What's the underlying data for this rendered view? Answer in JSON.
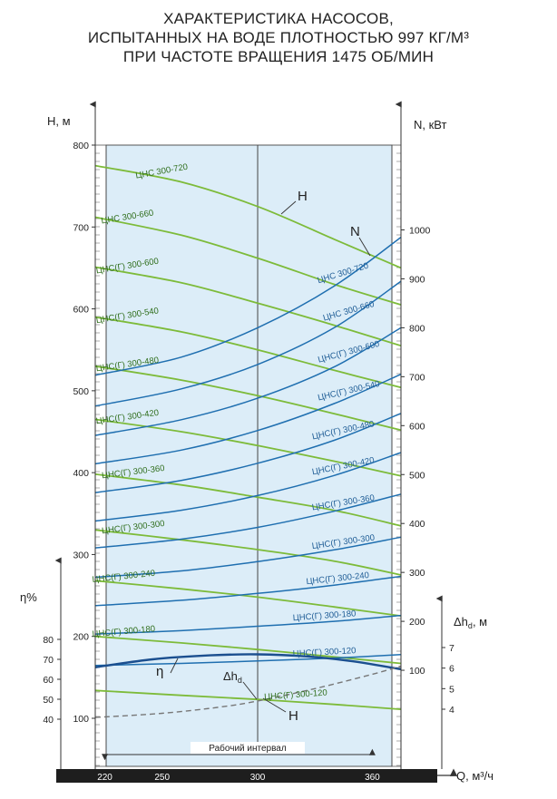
{
  "title": {
    "line1": "ХАРАКТЕРИСТИКА НАСОСОВ,",
    "line2": "ИСПЫТАННЫХ НА ВОДЕ ПЛОТНОСТЬЮ 997 КГ/М³",
    "line3": "ПРИ ЧАСТОТЕ ВРАЩЕНИЯ 1475 ОБ/МИН"
  },
  "colors": {
    "head_curve": "#7dbb3a",
    "power_curve": "#1f6fb0",
    "efficiency_curve": "#1b4f8f",
    "npsh_curve": "#777777",
    "working_band": "#dcedf8",
    "x_axis_bar": "#1e1e1e"
  },
  "chart_data": {
    "type": "line",
    "x": {
      "label": "Q, м³/ч",
      "ticks": [
        "220",
        "250",
        "300",
        "360"
      ],
      "tick_values": [
        220,
        250,
        300,
        360
      ],
      "range": [
        215,
        375
      ],
      "working_interval": [
        220,
        360
      ],
      "working_interval_label": "Рабочий интервал",
      "center_line": 300
    },
    "axes": {
      "head": {
        "label": "H, м",
        "side": "left",
        "range": [
          100,
          800
        ],
        "ticks": [
          "100",
          "200",
          "300",
          "400",
          "500",
          "600",
          "700",
          "800"
        ]
      },
      "power": {
        "label": "N, кВт",
        "side": "right",
        "range": [
          0,
          1140
        ],
        "ticks": [
          "100",
          "200",
          "300",
          "400",
          "500",
          "600",
          "700",
          "800",
          "900",
          "1000"
        ]
      },
      "efficiency": {
        "label": "η%",
        "side": "left-lower",
        "range": [
          0,
          100
        ],
        "ticks": [
          "40",
          "50",
          "60",
          "70",
          "80"
        ]
      },
      "npsh": {
        "label": "Δh",
        "label_sub": "d",
        "label_unit": ", м",
        "side": "right-lower",
        "range": [
          0,
          8
        ],
        "ticks": [
          "4",
          "5",
          "6",
          "7"
        ]
      }
    },
    "curve_markers": {
      "head": "H",
      "power": "N",
      "efficiency": "η",
      "npsh": "Δh",
      "npsh_sub": "d",
      "head_bottom": "H"
    },
    "head_series": [
      {
        "name": "ЦНС 300-720",
        "x": [
          215,
          260,
          300,
          340,
          375
        ],
        "y": [
          775,
          755,
          725,
          685,
          650
        ]
      },
      {
        "name": "ЦНС 300-660",
        "x": [
          215,
          260,
          300,
          340,
          375
        ],
        "y": [
          712,
          690,
          662,
          630,
          605
        ]
      },
      {
        "name": "ЦНС(Г) 300-600",
        "x": [
          215,
          260,
          300,
          340,
          375
        ],
        "y": [
          651,
          632,
          607,
          580,
          555
        ]
      },
      {
        "name": "ЦНС(Г) 300-540",
        "x": [
          215,
          260,
          300,
          340,
          375
        ],
        "y": [
          590,
          572,
          550,
          525,
          504
        ]
      },
      {
        "name": "ЦНС(Г) 300-480",
        "x": [
          215,
          260,
          300,
          340,
          375
        ],
        "y": [
          530,
          513,
          494,
          472,
          452
        ]
      },
      {
        "name": "ЦНС(Г) 300-420",
        "x": [
          215,
          260,
          300,
          340,
          375
        ],
        "y": [
          465,
          450,
          433,
          414,
          396
        ]
      },
      {
        "name": "ЦНС(Г) 300-360",
        "x": [
          215,
          260,
          300,
          340,
          375
        ],
        "y": [
          398,
          385,
          370,
          354,
          335
        ]
      },
      {
        "name": "ЦНС(Г) 300-300",
        "x": [
          215,
          260,
          300,
          340,
          375
        ],
        "y": [
          330,
          318,
          306,
          292,
          275
        ]
      },
      {
        "name": "ЦНС(Г) 300-240",
        "x": [
          215,
          260,
          300,
          340,
          375
        ],
        "y": [
          268,
          258,
          248,
          236,
          225
        ]
      },
      {
        "name": "ЦНС(Г) 300-180",
        "x": [
          215,
          260,
          300,
          340,
          375
        ],
        "y": [
          200,
          192,
          184,
          175,
          167
        ]
      },
      {
        "name": "ЦНС(Г) 300-120",
        "x": [
          215,
          260,
          300,
          340,
          375
        ],
        "y": [
          134,
          128,
          123,
          117,
          111
        ]
      }
    ],
    "power_series": [
      {
        "name": "ЦНС 300-720",
        "x": [
          215,
          260,
          300,
          340,
          375
        ],
        "y": [
          703,
          740,
          800,
          885,
          985
        ]
      },
      {
        "name": "ЦНС 300-660",
        "x": [
          215,
          260,
          300,
          340,
          375
        ],
        "y": [
          640,
          675,
          725,
          800,
          895
        ]
      },
      {
        "name": "ЦНС(Г) 300-600",
        "x": [
          215,
          260,
          300,
          340,
          375
        ],
        "y": [
          580,
          612,
          656,
          720,
          800
        ]
      },
      {
        "name": "ЦНС(Г) 300-540",
        "x": [
          215,
          260,
          300,
          340,
          375
        ],
        "y": [
          522,
          550,
          590,
          645,
          705
        ]
      },
      {
        "name": "ЦНС(Г) 300-480",
        "x": [
          215,
          260,
          300,
          340,
          375
        ],
        "y": [
          463,
          488,
          523,
          570,
          625
        ]
      },
      {
        "name": "ЦНС(Г) 300-420",
        "x": [
          215,
          260,
          300,
          340,
          375
        ],
        "y": [
          405,
          427,
          457,
          498,
          545
        ]
      },
      {
        "name": "ЦНС(Г) 300-360",
        "x": [
          215,
          260,
          300,
          340,
          375
        ],
        "y": [
          350,
          368,
          392,
          425,
          460
        ]
      },
      {
        "name": "ЦНС(Г) 300-300",
        "x": [
          215,
          260,
          300,
          340,
          375
        ],
        "y": [
          290,
          303,
          322,
          346,
          372
        ]
      },
      {
        "name": "ЦНС(Г) 300-240",
        "x": [
          215,
          260,
          300,
          340,
          375
        ],
        "y": [
          232,
          243,
          257,
          274,
          292
        ]
      },
      {
        "name": "ЦНС(Г) 300-180",
        "x": [
          215,
          260,
          300,
          340,
          375
        ],
        "y": [
          174,
          181,
          190,
          200,
          212
        ]
      },
      {
        "name": "ЦНС(Г) 300-120",
        "x": [
          215,
          260,
          300,
          340,
          375
        ],
        "y": [
          110,
          114,
          119,
          125,
          132
        ]
      }
    ],
    "efficiency_series": {
      "x": [
        215,
        245,
        275,
        300,
        325,
        350,
        375
      ],
      "y": [
        66,
        70,
        72,
        72.5,
        71.5,
        69,
        65
      ]
    },
    "npsh_series": {
      "x": [
        215,
        250,
        280,
        300,
        330,
        360,
        375
      ],
      "y": [
        3.6,
        3.8,
        4.1,
        4.4,
        5.0,
        5.7,
        6.1
      ]
    }
  }
}
